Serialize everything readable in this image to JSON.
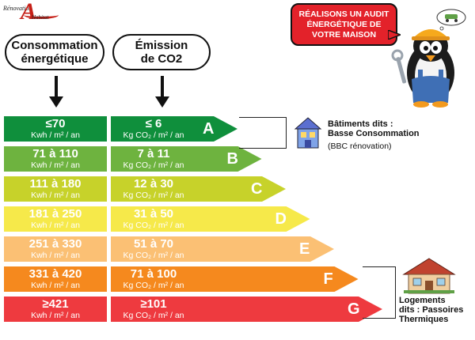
{
  "logo": {
    "top": "Rénovation",
    "letter": "A",
    "bottom": "Habitat"
  },
  "headers": {
    "consumption": "Consommation\nénergétique",
    "emission": "Émission\nde CO2"
  },
  "bubble": {
    "text": "RÉALISONS UN AUDIT\nÉNERGÉTIQUE DE\nVOTRE MAISON"
  },
  "units": {
    "consumption": "Kwh / m² / an",
    "co2": "Kg CO₂ / m² / an"
  },
  "ratings": [
    {
      "letter": "A",
      "consumption": "≤70",
      "co2": "≤ 6",
      "color": "#0f8f3c"
    },
    {
      "letter": "B",
      "consumption": "71 à 110",
      "co2": "7 à 11",
      "color": "#6eb33f"
    },
    {
      "letter": "C",
      "consumption": "111 à 180",
      "co2": "12 à 30",
      "color": "#c7d22a"
    },
    {
      "letter": "D",
      "consumption": "181 à 250",
      "co2": "31 à 50",
      "color": "#f6e94a"
    },
    {
      "letter": "E",
      "consumption": "251 à 330",
      "co2": "51 à 70",
      "color": "#fbc074"
    },
    {
      "letter": "F",
      "consumption": "331 à 420",
      "co2": "71 à 100",
      "color": "#f5891e"
    },
    {
      "letter": "G",
      "consumption": "≥421",
      "co2": "≥101",
      "color": "#ee3a3f"
    }
  ],
  "annotations": {
    "bbc_title": "Bâtiments dits :\nBasse Consommation",
    "bbc_note": "(BBC rénovation)",
    "passoires_title": "Logements\ndits : Passoires\nThermiques"
  },
  "icons": {
    "house_blue": "house-icon",
    "house_cottage": "cottage-icon",
    "mascot": "penguin-worker-icon",
    "arrow": "arrow-down-icon"
  }
}
